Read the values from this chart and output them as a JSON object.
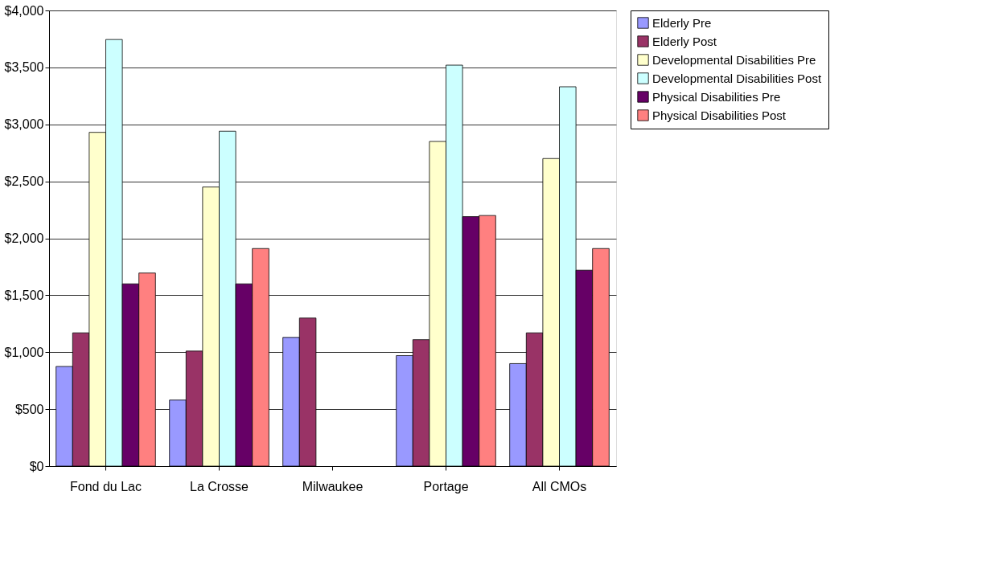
{
  "chart_data": {
    "type": "bar",
    "categories": [
      "Fond du Lac",
      "La Crosse",
      "Milwaukee",
      "Portage",
      "All CMOs"
    ],
    "series": [
      {
        "name": "Elderly Pre",
        "color": "#9999ff",
        "values": [
          875,
          580,
          1130,
          970,
          900
        ]
      },
      {
        "name": "Elderly Post",
        "color": "#993366",
        "values": [
          1170,
          1010,
          1300,
          1110,
          1170
        ]
      },
      {
        "name": "Developmental Disabilities Pre",
        "color": "#ffffcc",
        "values": [
          2930,
          2450,
          null,
          2850,
          2700
        ]
      },
      {
        "name": "Developmental Disabilities Post",
        "color": "#ccffff",
        "values": [
          3745,
          2940,
          null,
          3520,
          3330
        ]
      },
      {
        "name": "Physical Disabilities Pre",
        "color": "#660066",
        "values": [
          1600,
          1600,
          null,
          2190,
          1720
        ]
      },
      {
        "name": "Physical Disabilities Post",
        "color": "#ff8080",
        "values": [
          1695,
          1910,
          null,
          2200,
          1910
        ]
      }
    ],
    "ylim": [
      0,
      4000
    ],
    "yticks": [
      {
        "value": 0,
        "label": "$0"
      },
      {
        "value": 500,
        "label": "$500"
      },
      {
        "value": 1000,
        "label": "$1,000"
      },
      {
        "value": 1500,
        "label": "$1,500"
      },
      {
        "value": 2000,
        "label": "$2,000"
      },
      {
        "value": 2500,
        "label": "$2,500"
      },
      {
        "value": 3000,
        "label": "$3,000"
      },
      {
        "value": 3500,
        "label": "$3,500"
      },
      {
        "value": 4000,
        "label": "$4,000"
      }
    ],
    "grid": "y",
    "legend": "right"
  }
}
